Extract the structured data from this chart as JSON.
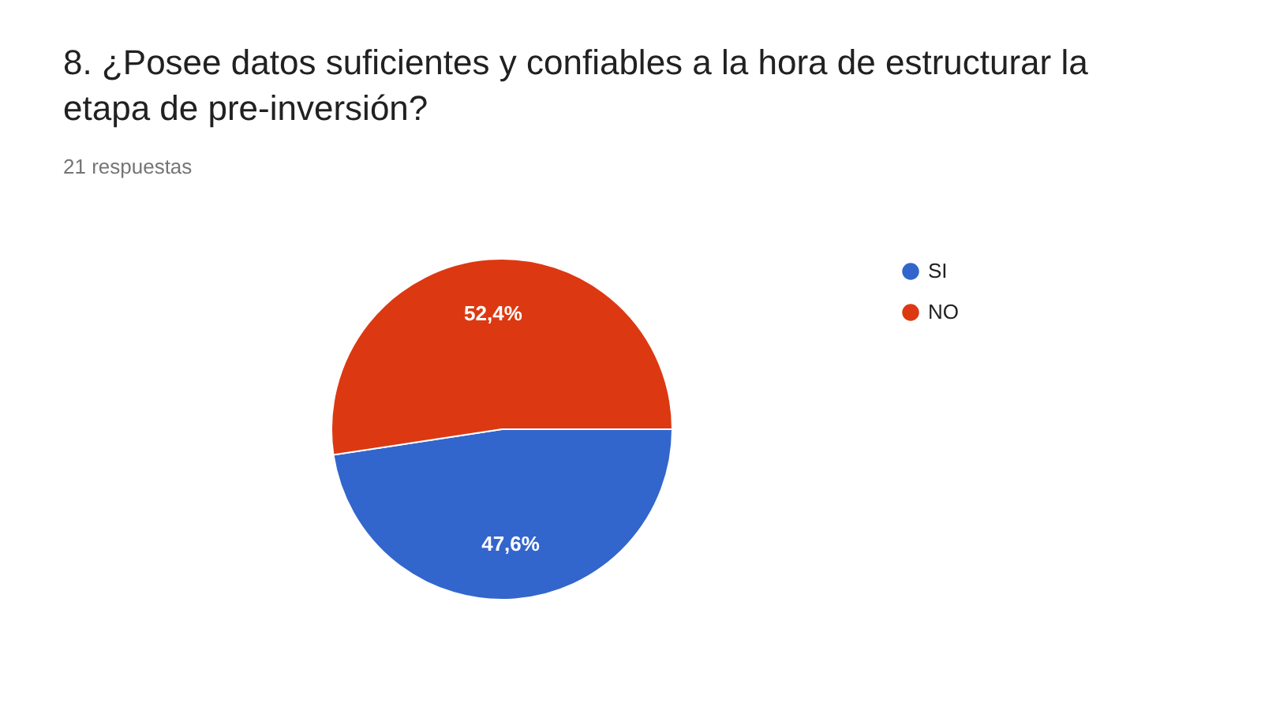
{
  "chart_data": {
    "type": "pie",
    "title": "8. ¿Posee datos suficientes y confiables a la hora de estructurar la etapa de pre-inversión?",
    "subtitle": "21 respuestas",
    "categories": [
      "SI",
      "NO"
    ],
    "values": [
      47.6,
      52.4
    ],
    "colors": [
      "#3366cc",
      "#dc3912"
    ],
    "value_labels": [
      "47,6%",
      "52,4%"
    ],
    "legend": "right"
  }
}
